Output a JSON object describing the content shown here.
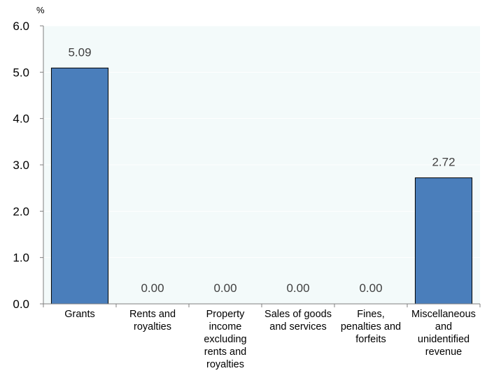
{
  "chart_data": {
    "type": "bar",
    "title": "",
    "unit_label": "%",
    "categories": [
      "Grants",
      "Rents and royalties",
      "Property income excluding rents and royalties",
      "Sales of goods and services",
      "Fines, penalties and forfeits",
      "Miscellaneous and unidentified revenue"
    ],
    "category_lines": [
      [
        "Grants"
      ],
      [
        "Rents and",
        "royalties"
      ],
      [
        "Property",
        "income",
        "excluding",
        "rents and",
        "royalties"
      ],
      [
        "Sales of goods",
        "and services"
      ],
      [
        "Fines,",
        "penalties and",
        "forfeits"
      ],
      [
        "Miscellaneous",
        "and",
        "unidentified",
        "revenue"
      ]
    ],
    "values": [
      5.09,
      0.0,
      0.0,
      0.0,
      0.0,
      2.72
    ],
    "data_labels": [
      "5.09",
      "0.00",
      "0.00",
      "0.00",
      "0.00",
      "2.72"
    ],
    "ylim": [
      0,
      6
    ],
    "yticks": [
      0,
      1,
      2,
      3,
      4,
      5,
      6
    ],
    "ytick_labels": [
      "0.0",
      "1.0",
      "2.0",
      "3.0",
      "4.0",
      "5.0",
      "6.0"
    ],
    "xlabel": "",
    "ylabel": "",
    "grid": true,
    "legend": "none",
    "colors": {
      "bar": "#4a7ebb",
      "bar_edge": "#000000",
      "plot_bg": "#f3fafa",
      "grid": "#ffffff",
      "axis": "#7f7f7f"
    }
  }
}
